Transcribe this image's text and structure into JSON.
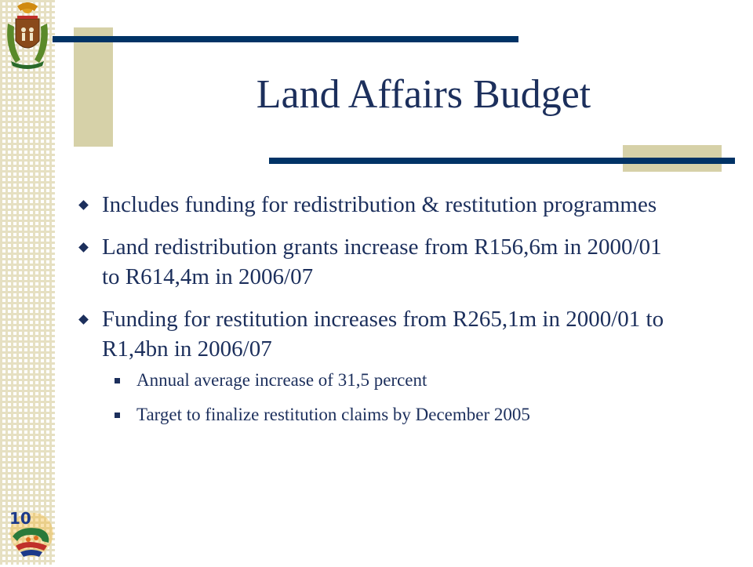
{
  "slide": {
    "title": "Land Affairs Budget",
    "bullets": [
      {
        "text": "Includes funding for redistribution & restitution programmes"
      },
      {
        "text": "Land redistribution grants increase from R156,6m in 2000/01 to R614,4m in 2006/07"
      },
      {
        "text": "Funding for restitution increases from R265,1m in 2000/01 to R1,4bn in 2006/07"
      }
    ],
    "sub_bullets": [
      {
        "text": "Annual average increase of 31,5 percent"
      },
      {
        "text": "Target to finalize restitution claims by December 2005"
      }
    ]
  },
  "logos": {
    "top_left": "south-africa-coat-of-arms-icon",
    "bottom_left": "ten-years-of-freedom-logo-icon",
    "years_text": "10"
  },
  "colors": {
    "navy": "#003366",
    "text": "#1c2f5c",
    "tan": "#d6d1a8",
    "stripe": "#e6e0c2"
  }
}
